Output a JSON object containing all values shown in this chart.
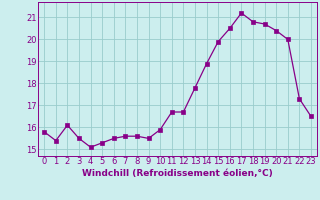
{
  "x": [
    0,
    1,
    2,
    3,
    4,
    5,
    6,
    7,
    8,
    9,
    10,
    11,
    12,
    13,
    14,
    15,
    16,
    17,
    18,
    19,
    20,
    21,
    22,
    23
  ],
  "y": [
    15.8,
    15.4,
    16.1,
    15.5,
    15.1,
    15.3,
    15.5,
    15.6,
    15.6,
    15.5,
    15.9,
    16.7,
    16.7,
    17.8,
    18.9,
    19.9,
    20.5,
    21.2,
    20.8,
    20.7,
    20.4,
    20.0,
    17.3,
    16.5
  ],
  "line_color": "#880088",
  "marker_color": "#880088",
  "bg_color": "#cceeee",
  "grid_color": "#99cccc",
  "xlabel": "Windchill (Refroidissement éolien,°C)",
  "ylim": [
    14.7,
    21.7
  ],
  "xlim": [
    -0.5,
    23.5
  ],
  "yticks": [
    15,
    16,
    17,
    18,
    19,
    20,
    21
  ],
  "xtick_labels": [
    "0",
    "1",
    "2",
    "3",
    "4",
    "5",
    "6",
    "7",
    "8",
    "9",
    "10",
    "11",
    "12",
    "13",
    "14",
    "15",
    "16",
    "17",
    "18",
    "19",
    "20",
    "21",
    "22",
    "23"
  ],
  "font_color": "#880088",
  "tick_fontsize": 6.0,
  "xlabel_fontsize": 6.5,
  "marker_size": 2.2,
  "line_width": 0.9
}
